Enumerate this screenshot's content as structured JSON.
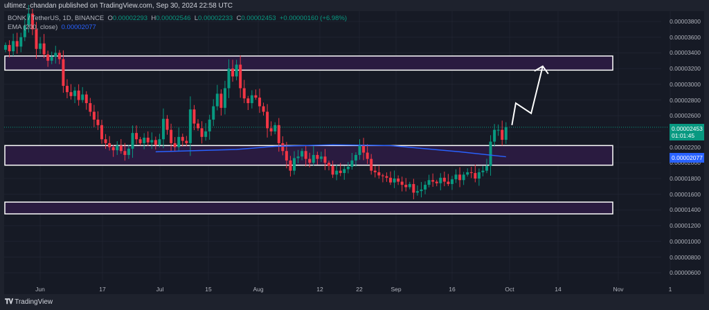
{
  "header": {
    "published": "ultimez_chandan published on TradingView.com, Sep 30, 2024 22:58 UTC"
  },
  "legend": {
    "symbol": "BONK / TetherUS, 1D, BINANCE",
    "o_label": "O",
    "o": "0.00002293",
    "h_label": "H",
    "h": "0.00002546",
    "l_label": "L",
    "l": "0.00002233",
    "c_label": "C",
    "c": "0.00002453",
    "change": "+0.00000160 (+6.98%)",
    "ema_label": "EMA (200, close)",
    "ema_value": "0.00002077"
  },
  "price_tag": {
    "price": "0.00002453",
    "countdown": "01:01:45"
  },
  "ema_tag": "0.00002077",
  "footer": {
    "brand": "TradingView"
  },
  "colors": {
    "up": "#089981",
    "down": "#f23645",
    "ema": "#2962ff",
    "zone_fill": "#2a1b40",
    "zone_border": "#ffffff",
    "arrow": "#ffffff"
  },
  "chart_data": {
    "type": "candlestick",
    "y_ticks": [
      "0.00003800",
      "0.00003600",
      "0.00003400",
      "0.00003200",
      "0.00003000",
      "0.00002800",
      "0.00002600",
      "0.00002200",
      "0.00002000",
      "0.00001800",
      "0.00001600",
      "0.00001400",
      "0.00001200",
      "0.00001000",
      "0.00000800",
      "0.00000600"
    ],
    "x_ticks": [
      "Jun",
      "17",
      "Jul",
      "15",
      "Aug",
      "12",
      "22",
      "Sep",
      "16",
      "Oct",
      "14",
      "Nov",
      "1"
    ],
    "price_unit": "1e-8 USDT",
    "closes": [
      3500,
      3420,
      3550,
      3480,
      3600,
      3750,
      3900,
      3700,
      3450,
      3520,
      3380,
      3300,
      3350,
      3400,
      3320,
      2980,
      2900,
      2850,
      2920,
      2800,
      2870,
      2760,
      2650,
      2550,
      2480,
      2300,
      2250,
      2200,
      2160,
      2220,
      2150,
      2100,
      2180,
      2380,
      2300,
      2250,
      2320,
      2260,
      2290,
      2230,
      2300,
      2560,
      2420,
      2250,
      2200,
      2330,
      2280,
      2250,
      2680,
      2500,
      2440,
      2330,
      2400,
      2550,
      2720,
      2880,
      2700,
      2950,
      3200,
      3100,
      3250,
      2950,
      2820,
      2760,
      2860,
      2830,
      2720,
      2650,
      2440,
      2400,
      2480,
      2250,
      2150,
      2030,
      1900,
      2060,
      2080,
      2150,
      2050,
      2000,
      2100,
      2050,
      2080,
      2000,
      1960,
      1850,
      1900,
      1870,
      1920,
      1950,
      2030,
      2100,
      2230,
      2130,
      2050,
      1900,
      1880,
      1840,
      1830,
      1810,
      1750,
      1800,
      1760,
      1720,
      1690,
      1730,
      1620,
      1640,
      1660,
      1720,
      1780,
      1760,
      1740,
      1810,
      1760,
      1730,
      1790,
      1850,
      1780,
      1850,
      1880,
      1870,
      1800,
      1880,
      1900,
      1960,
      2270,
      2420,
      2420,
      2293,
      2453
    ],
    "ema": [
      [
        0,
        null
      ]
    ],
    "ema_points": [
      [
        39,
        2140
      ],
      [
        60,
        2170
      ],
      [
        70,
        2210
      ],
      [
        85,
        2230
      ],
      [
        100,
        2220
      ],
      [
        118,
        2140
      ],
      [
        130,
        2077
      ]
    ],
    "zones": [
      [
        3180,
        3360
      ],
      [
        1970,
        2220
      ],
      [
        1350,
        1500
      ]
    ],
    "projection": [
      [
        131,
        2480
      ],
      [
        132,
        2760
      ],
      [
        136,
        2630
      ],
      [
        139,
        3230
      ]
    ]
  }
}
